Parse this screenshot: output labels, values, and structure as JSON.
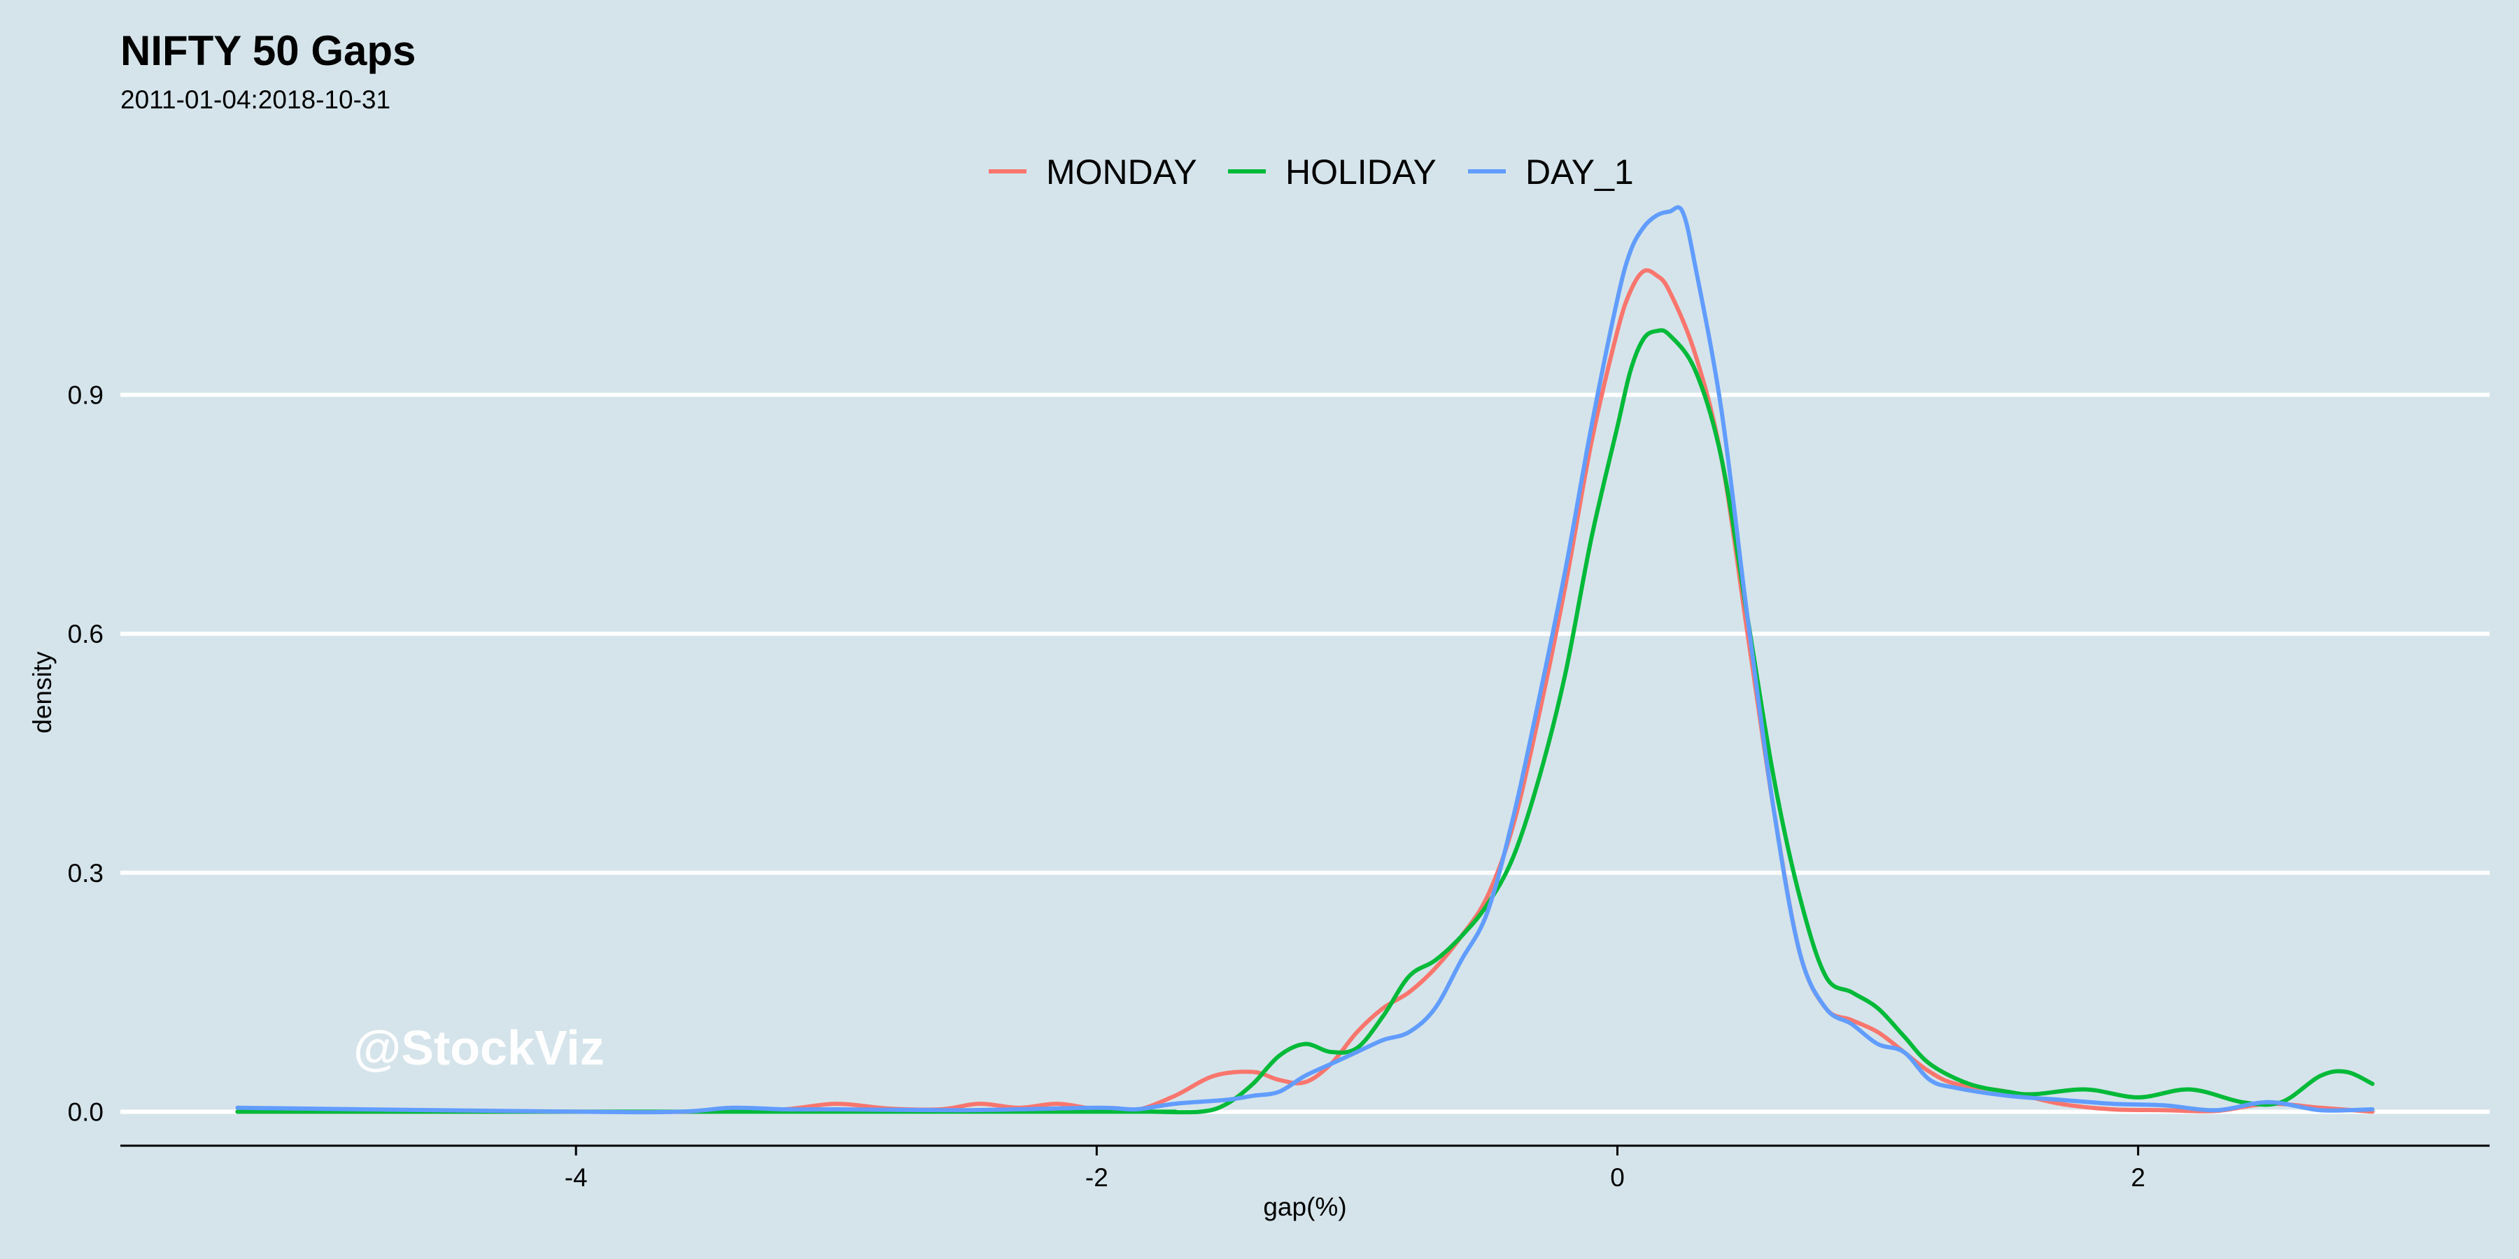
{
  "chart_data": {
    "type": "line",
    "title": "NIFTY 50 Gaps",
    "subtitle": "2011-01-04:2018-10-31",
    "xlabel": "gap(%)",
    "ylabel": "density",
    "xlim": [
      -5.75,
      3.35
    ],
    "ylim": [
      -0.04,
      1.22
    ],
    "xticks": [
      -4,
      -2,
      0,
      2
    ],
    "xtick_labels": [
      "-4",
      "-2",
      "0",
      "2"
    ],
    "yticks": [
      0.0,
      0.3,
      0.6,
      0.9
    ],
    "ytick_labels": [
      "0.0",
      "0.3",
      "0.6",
      "0.9"
    ],
    "grid": "horizontal major lines",
    "legend_position": "top-center",
    "watermark": "@StockViz",
    "series": [
      {
        "name": "MONDAY",
        "color": "#f8766d",
        "x": [
          -5.3,
          -4.0,
          -3.5,
          -3.2,
          -3.0,
          -2.8,
          -2.6,
          -2.45,
          -2.3,
          -2.15,
          -2.0,
          -1.85,
          -1.7,
          -1.55,
          -1.4,
          -1.3,
          -1.2,
          -1.1,
          -1.0,
          -0.9,
          -0.8,
          -0.7,
          -0.6,
          -0.5,
          -0.4,
          -0.3,
          -0.2,
          -0.1,
          0.0,
          0.05,
          0.1,
          0.15,
          0.2,
          0.3,
          0.4,
          0.5,
          0.6,
          0.7,
          0.8,
          0.9,
          1.0,
          1.1,
          1.2,
          1.3,
          1.5,
          1.7,
          1.9,
          2.1,
          2.3,
          2.5,
          2.7,
          2.9
        ],
        "y": [
          0.0,
          0.0,
          0.0,
          0.003,
          0.01,
          0.004,
          0.003,
          0.01,
          0.005,
          0.01,
          0.003,
          0.002,
          0.02,
          0.045,
          0.05,
          0.04,
          0.037,
          0.06,
          0.1,
          0.13,
          0.15,
          0.18,
          0.22,
          0.27,
          0.36,
          0.5,
          0.66,
          0.84,
          0.98,
          1.03,
          1.055,
          1.05,
          1.03,
          0.95,
          0.82,
          0.6,
          0.38,
          0.2,
          0.13,
          0.115,
          0.1,
          0.075,
          0.05,
          0.035,
          0.025,
          0.01,
          0.003,
          0.002,
          0.001,
          0.01,
          0.005,
          0.0
        ]
      },
      {
        "name": "HOLIDAY",
        "color": "#00ba38",
        "x": [
          -5.3,
          -2.0,
          -1.8,
          -1.6,
          -1.5,
          -1.4,
          -1.3,
          -1.2,
          -1.1,
          -1.0,
          -0.9,
          -0.8,
          -0.7,
          -0.6,
          -0.5,
          -0.4,
          -0.3,
          -0.2,
          -0.1,
          0.0,
          0.05,
          0.1,
          0.15,
          0.2,
          0.3,
          0.4,
          0.5,
          0.6,
          0.7,
          0.8,
          0.9,
          1.0,
          1.1,
          1.2,
          1.35,
          1.5,
          1.6,
          1.8,
          2.0,
          2.2,
          2.4,
          2.55,
          2.7,
          2.8,
          2.9
        ],
        "y": [
          0.0,
          0.0,
          0.0,
          0.0,
          0.01,
          0.035,
          0.07,
          0.085,
          0.075,
          0.08,
          0.12,
          0.17,
          0.19,
          0.22,
          0.26,
          0.32,
          0.42,
          0.55,
          0.72,
          0.86,
          0.93,
          0.97,
          0.98,
          0.975,
          0.93,
          0.82,
          0.62,
          0.42,
          0.27,
          0.17,
          0.15,
          0.13,
          0.095,
          0.06,
          0.035,
          0.025,
          0.022,
          0.028,
          0.018,
          0.028,
          0.012,
          0.012,
          0.045,
          0.05,
          0.035
        ]
      },
      {
        "name": "DAY_1",
        "color": "#619cff",
        "x": [
          -5.3,
          -4.0,
          -3.6,
          -3.4,
          -3.2,
          -3.0,
          -2.5,
          -2.0,
          -1.85,
          -1.7,
          -1.5,
          -1.4,
          -1.3,
          -1.2,
          -1.1,
          -1.0,
          -0.9,
          -0.8,
          -0.7,
          -0.6,
          -0.5,
          -0.4,
          -0.3,
          -0.2,
          -0.1,
          0.0,
          0.05,
          0.1,
          0.15,
          0.2,
          0.25,
          0.3,
          0.4,
          0.5,
          0.6,
          0.7,
          0.8,
          0.9,
          1.0,
          1.1,
          1.2,
          1.3,
          1.5,
          1.7,
          1.9,
          2.1,
          2.3,
          2.5,
          2.7,
          2.9
        ],
        "y": [
          0.005,
          0.0,
          0.0,
          0.005,
          0.003,
          0.003,
          0.002,
          0.005,
          0.003,
          0.01,
          0.015,
          0.02,
          0.025,
          0.045,
          0.06,
          0.075,
          0.09,
          0.1,
          0.13,
          0.19,
          0.25,
          0.37,
          0.52,
          0.68,
          0.86,
          1.02,
          1.08,
          1.11,
          1.125,
          1.13,
          1.13,
          1.06,
          0.88,
          0.62,
          0.38,
          0.2,
          0.13,
          0.11,
          0.085,
          0.075,
          0.04,
          0.03,
          0.02,
          0.015,
          0.01,
          0.008,
          0.002,
          0.012,
          0.002,
          0.003
        ]
      }
    ]
  }
}
